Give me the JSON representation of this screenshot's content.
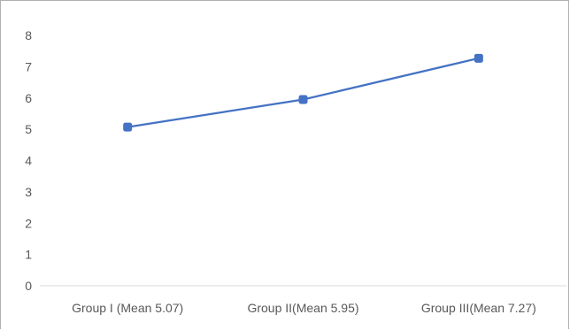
{
  "chart_data": {
    "type": "line",
    "categories": [
      "Group I (Mean 5.07)",
      "Group II(Mean 5.95)",
      "Group III(Mean 7.27)"
    ],
    "series": [
      {
        "values": [
          5.07,
          5.95,
          7.27
        ]
      }
    ],
    "yticks": [
      "0",
      "1",
      "2",
      "3",
      "4",
      "5",
      "6",
      "7",
      "8"
    ],
    "ylim": [
      0,
      8
    ],
    "grid": false,
    "colors": {
      "line": "#4472C4",
      "axis": "#d9d9d9",
      "text": "#595959"
    }
  }
}
